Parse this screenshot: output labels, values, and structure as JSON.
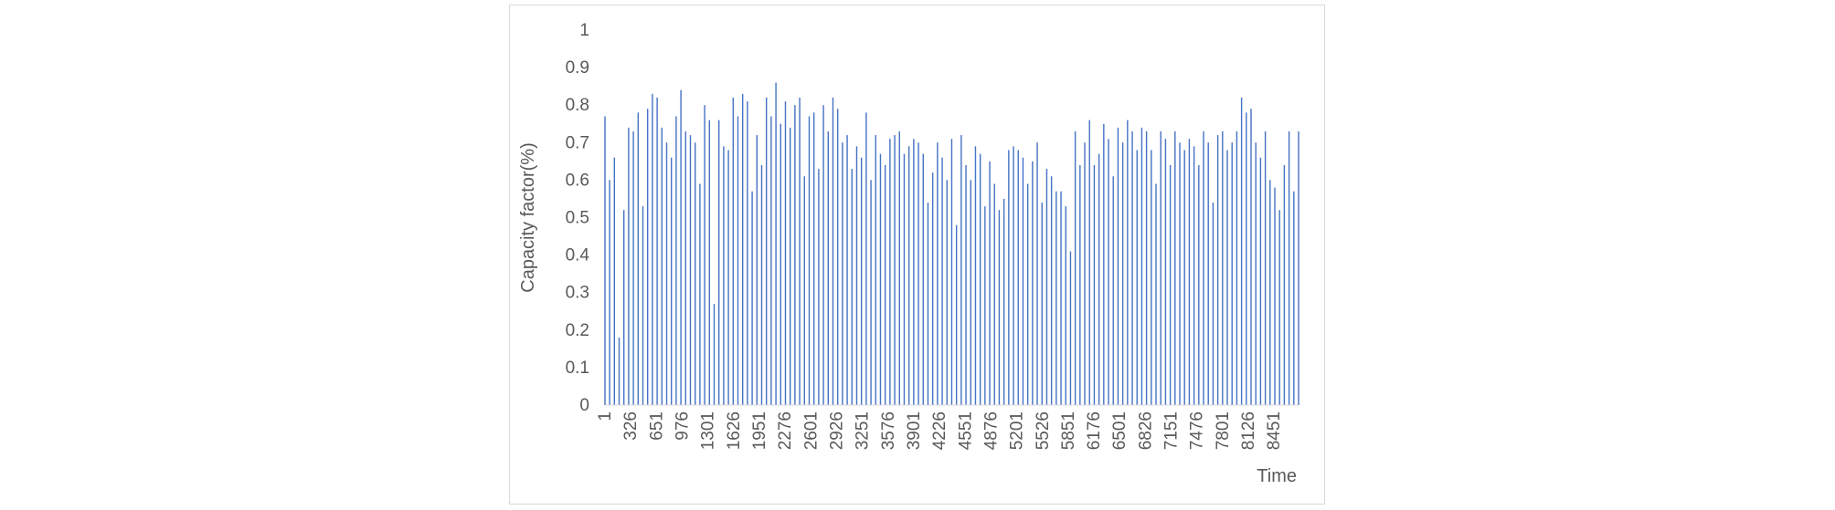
{
  "chart_data": {
    "type": "bar",
    "title": "",
    "xlabel": "Time",
    "ylabel": "Capacity factor(%)",
    "ylim": [
      0,
      1
    ],
    "yticks": [
      "0",
      "0.1",
      "0.2",
      "0.3",
      "0.4",
      "0.5",
      "0.6",
      "0.7",
      "0.8",
      "0.9",
      "1"
    ],
    "xticks": [
      "1",
      "326",
      "651",
      "976",
      "1301",
      "1626",
      "1951",
      "2276",
      "2601",
      "2926",
      "3251",
      "3576",
      "3901",
      "4226",
      "4551",
      "4876",
      "5201",
      "5526",
      "5851",
      "6176",
      "6501",
      "6826",
      "7151",
      "7476",
      "7801",
      "8126",
      "8451"
    ],
    "xlim": [
      1,
      8760
    ],
    "grid": false,
    "legend": "none",
    "bar_color": "#4472c4",
    "series": [
      {
        "x": [
          1,
          60,
          120,
          180,
          240,
          300,
          360,
          420,
          480,
          540,
          600,
          660,
          720,
          780,
          840,
          900,
          960,
          1020,
          1080,
          1140,
          1200,
          1260,
          1320,
          1380,
          1440,
          1500,
          1560,
          1620,
          1680,
          1740,
          1800,
          1860,
          1920,
          1980,
          2040,
          2100,
          2160,
          2220,
          2280,
          2340,
          2400,
          2460,
          2520,
          2580,
          2640,
          2700,
          2760,
          2820,
          2880,
          2940,
          3000,
          3060,
          3120,
          3180,
          3240,
          3300,
          3360,
          3420,
          3480,
          3540,
          3600,
          3660,
          3720,
          3780,
          3840,
          3900,
          3960,
          4020,
          4080,
          4140,
          4200,
          4260,
          4320,
          4380,
          4440,
          4500,
          4560,
          4620,
          4680,
          4740,
          4800,
          4860,
          4920,
          4980,
          5040,
          5100,
          5160,
          5220,
          5280,
          5340,
          5400,
          5460,
          5520,
          5580,
          5640,
          5700,
          5760,
          5820,
          5880,
          5940,
          6000,
          6060,
          6120,
          6180,
          6240,
          6300,
          6360,
          6420,
          6480,
          6540,
          6600,
          6660,
          6720,
          6780,
          6840,
          6900,
          6960,
          7020,
          7080,
          7140,
          7200,
          7260,
          7320,
          7380,
          7440,
          7500,
          7560,
          7620,
          7680,
          7740,
          7800,
          7860,
          7920,
          7980,
          8040,
          8100,
          8160,
          8220,
          8280,
          8340,
          8400,
          8460,
          8520,
          8580,
          8640,
          8700,
          8760
        ],
        "values": [
          0.77,
          0.6,
          0.66,
          0.18,
          0.52,
          0.74,
          0.73,
          0.78,
          0.53,
          0.79,
          0.83,
          0.82,
          0.74,
          0.7,
          0.66,
          0.77,
          0.84,
          0.73,
          0.72,
          0.7,
          0.59,
          0.8,
          0.76,
          0.27,
          0.76,
          0.69,
          0.68,
          0.82,
          0.77,
          0.83,
          0.81,
          0.57,
          0.72,
          0.64,
          0.82,
          0.77,
          0.86,
          0.75,
          0.81,
          0.74,
          0.8,
          0.82,
          0.61,
          0.77,
          0.78,
          0.63,
          0.8,
          0.73,
          0.82,
          0.79,
          0.7,
          0.72,
          0.63,
          0.69,
          0.66,
          0.78,
          0.6,
          0.72,
          0.67,
          0.64,
          0.71,
          0.72,
          0.73,
          0.67,
          0.69,
          0.71,
          0.7,
          0.67,
          0.54,
          0.62,
          0.7,
          0.66,
          0.6,
          0.71,
          0.48,
          0.72,
          0.64,
          0.6,
          0.69,
          0.67,
          0.53,
          0.65,
          0.59,
          0.52,
          0.55,
          0.68,
          0.69,
          0.68,
          0.66,
          0.59,
          0.65,
          0.7,
          0.54,
          0.63,
          0.61,
          0.57,
          0.57,
          0.53,
          0.41,
          0.73,
          0.64,
          0.7,
          0.76,
          0.64,
          0.67,
          0.75,
          0.71,
          0.61,
          0.74,
          0.7,
          0.76,
          0.73,
          0.68,
          0.74,
          0.73,
          0.68,
          0.59,
          0.73,
          0.71,
          0.64,
          0.73,
          0.7,
          0.68,
          0.71,
          0.69,
          0.64,
          0.73,
          0.7,
          0.54,
          0.72,
          0.73,
          0.68,
          0.7,
          0.73,
          0.82,
          0.78,
          0.79,
          0.7,
          0.66,
          0.73,
          0.6,
          0.58,
          0.52,
          0.64,
          0.73,
          0.57,
          0.73
        ]
      }
    ]
  }
}
